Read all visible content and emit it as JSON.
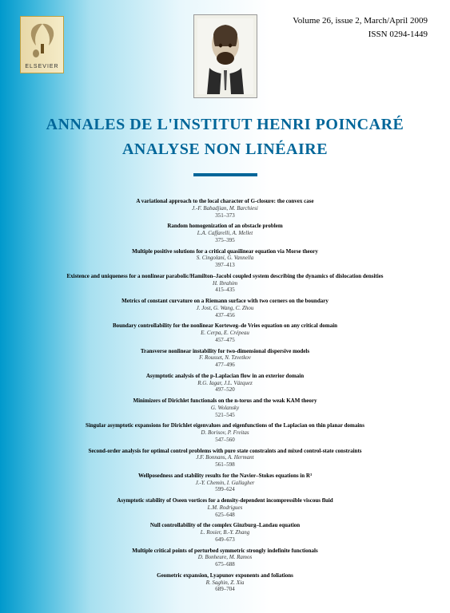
{
  "header": {
    "volume_issue": "Volume 26, issue 2, March/April 2009",
    "issn": "ISSN 0294-1449"
  },
  "publisher": {
    "name": "ELSEVIER"
  },
  "journal": {
    "title_line1": "ANNALES DE L'INSTITUT HENRI POINCARÉ",
    "title_line2": "ANALYSE NON LINÉAIRE"
  },
  "colors": {
    "title_color": "#006699",
    "gradient_start": "#0099cc",
    "gradient_end": "#ffffff",
    "underline_color": "#006699"
  },
  "toc": [
    {
      "title": "A variational approach to the local character of G-closure: the convex case",
      "authors": "J.-F. Babadjian, M. Barchiesi",
      "pages": "351–373"
    },
    {
      "title": "Random homogenization of an obstacle problem",
      "authors": "L.A. Caffarelli, A. Mellet",
      "pages": "375–395"
    },
    {
      "title": "Multiple positive solutions for a critical quasilinear equation via Morse theory",
      "authors": "S. Cingolani, G. Vannella",
      "pages": "397–413"
    },
    {
      "title": "Existence and uniqueness for a nonlinear parabolic/Hamilton–Jacobi coupled system describing the dynamics of dislocation densities",
      "authors": "H. Ibrahim",
      "pages": "415–435"
    },
    {
      "title": "Metrics of constant curvature on a Riemann surface with two corners on the boundary",
      "authors": "J. Jost, G. Wang, C. Zhou",
      "pages": "437–456"
    },
    {
      "title": "Boundary controllability for the nonlinear Korteweg–de Vries equation on any critical domain",
      "authors": "E. Cerpa, E. Crépeau",
      "pages": "457–475"
    },
    {
      "title": "Transverse nonlinear instability for two-dimensional dispersive models",
      "authors": "F. Rousset, N. Tzvetkov",
      "pages": "477–496"
    },
    {
      "title": "Asymptotic analysis of the p-Laplacian flow in an exterior domain",
      "authors": "R.G. Iagar, J.L. Vázquez",
      "pages": "497–520"
    },
    {
      "title": "Minimizers of Dirichlet functionals on the n-torus and the weak KAM theory",
      "authors": "G. Wolansky",
      "pages": "521–545"
    },
    {
      "title": "Singular asymptotic expansions for Dirichlet eigenvalues and eigenfunctions of the Laplacian on thin planar domains",
      "authors": "D. Borisov, P. Freitas",
      "pages": "547–560"
    },
    {
      "title": "Second-order analysis for optimal control problems with pure state constraints and mixed control-state constraints",
      "authors": "J.F. Bonnans, A. Hermant",
      "pages": "561–598"
    },
    {
      "title": "Wellposedness and stability results for the Navier–Stokes equations in R³",
      "authors": "J.-Y. Chemin, I. Gallagher",
      "pages": "599–624"
    },
    {
      "title": "Asymptotic stability of Oseen vortices for a density-dependent incompressible viscous fluid",
      "authors": "L.M. Rodrigues",
      "pages": "625–648"
    },
    {
      "title": "Null controllability of the complex Ginzburg–Landau equation",
      "authors": "L. Rosier, B.-Y. Zhang",
      "pages": "649–673"
    },
    {
      "title": "Multiple critical points of perturbed symmetric strongly indefinite functionals",
      "authors": "D. Bonheure, M. Ramos",
      "pages": "675–688"
    },
    {
      "title": "Geometric expansion, Lyapunov exponents and foliations",
      "authors": "R. Saghin, Z. Xia",
      "pages": "689–704"
    }
  ]
}
